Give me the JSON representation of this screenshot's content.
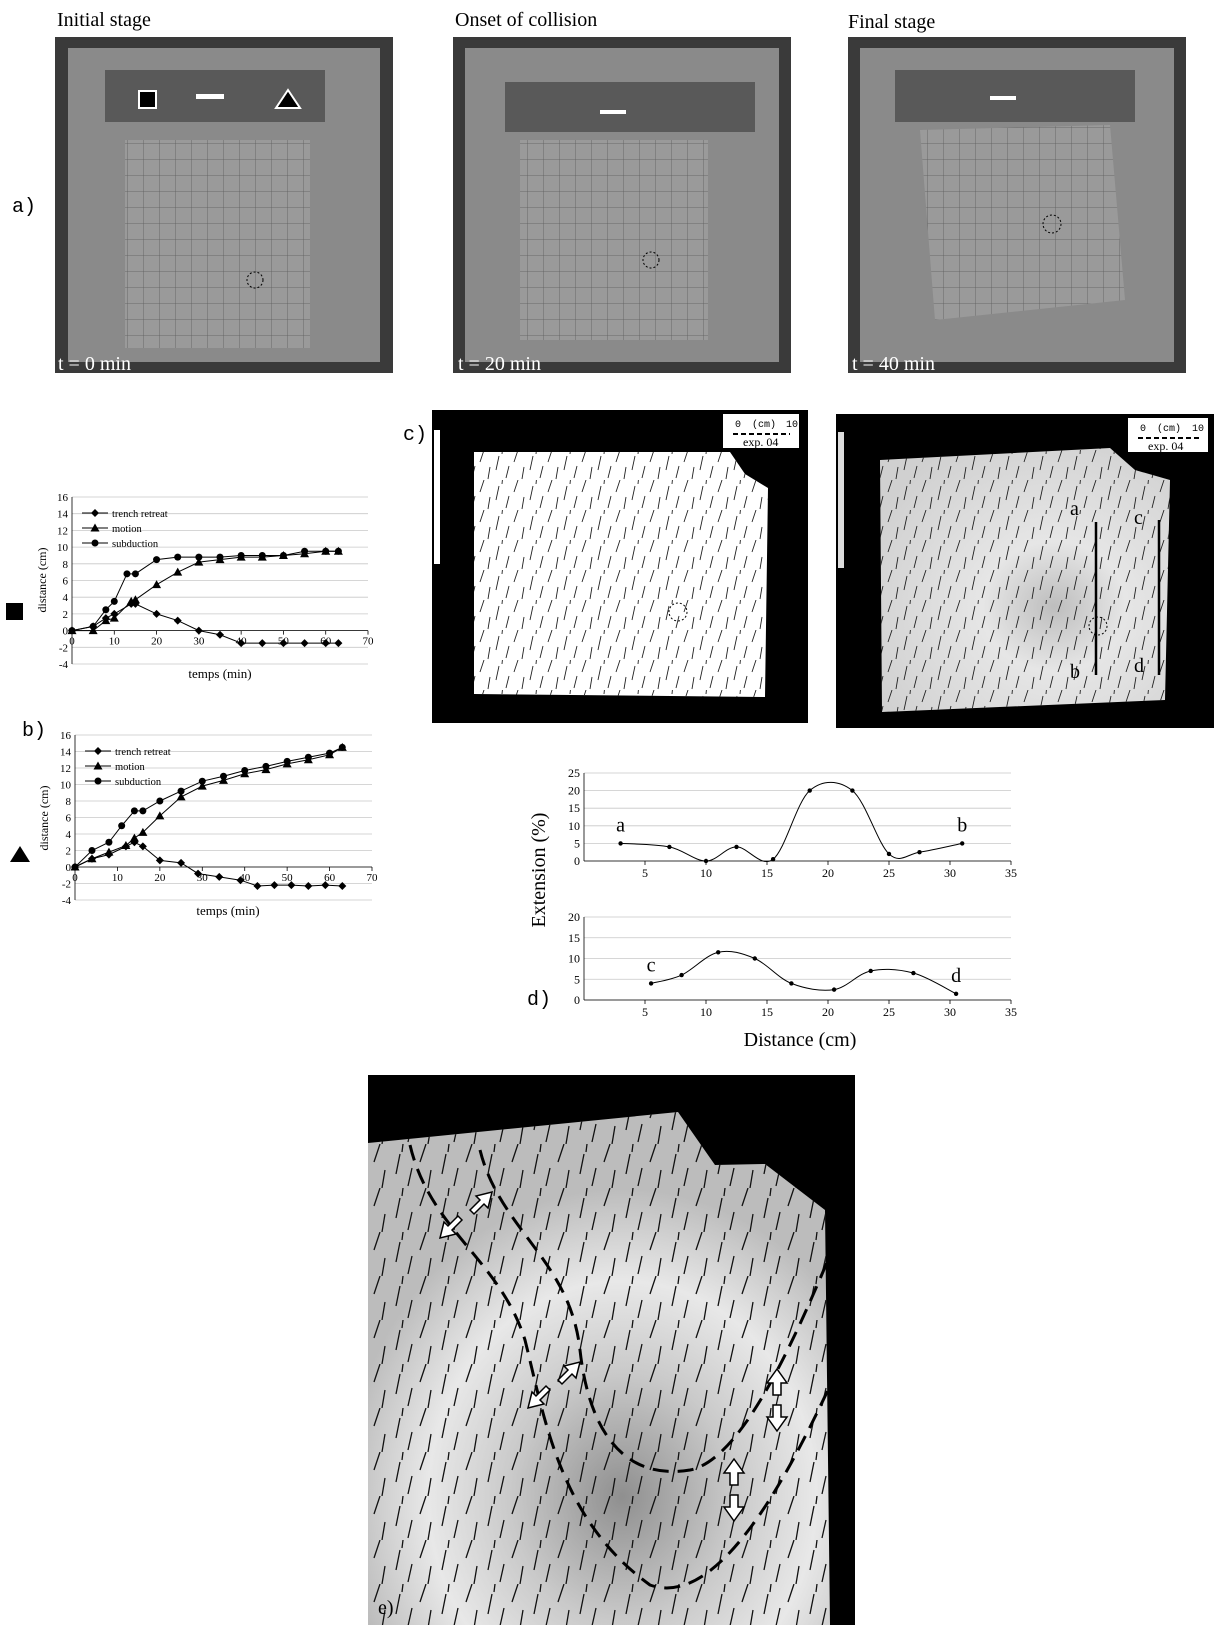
{
  "panels": {
    "a": {
      "label": "a)",
      "stages": [
        {
          "title": "Initial stage",
          "time": "t = 0 min"
        },
        {
          "title": "Onset of collision",
          "time": "t = 20 min"
        },
        {
          "title": "Final stage",
          "time": "t = 40 min"
        }
      ]
    },
    "b": {
      "label": "b)"
    },
    "c": {
      "label": "c)",
      "maps": [
        {
          "scale_start": "0",
          "scale_unit": "(cm)",
          "scale_end": "10",
          "exp": "exp. 04"
        },
        {
          "scale_start": "0",
          "scale_unit": "(cm)",
          "scale_end": "10",
          "exp": "exp. 04"
        }
      ],
      "profiles": [
        "a",
        "b",
        "c",
        "d"
      ]
    },
    "d": {
      "label": "d)"
    },
    "e": {
      "label": "e)"
    }
  },
  "chart_data": [
    {
      "type": "line",
      "x_label": "temps (min)",
      "y_label": "distance (cm)",
      "xlim": [
        0,
        70
      ],
      "xticks": [
        0,
        10,
        20,
        30,
        40,
        50,
        60,
        70
      ],
      "ylim": [
        -4,
        16
      ],
      "yticks": [
        -4,
        -2,
        0,
        2,
        4,
        6,
        8,
        10,
        12,
        14,
        16
      ],
      "grid": true,
      "legend": "upper left",
      "series": [
        {
          "name": "trench retreat",
          "marker": "diamond",
          "color": "#000",
          "x": [
            0,
            5,
            8,
            10,
            14,
            15,
            20,
            25,
            30,
            35,
            40,
            45,
            50,
            55,
            60,
            63
          ],
          "values": [
            0,
            0.5,
            1.5,
            2,
            3.2,
            3.2,
            2,
            1.2,
            0,
            -0.5,
            -1.5,
            -1.5,
            -1.5,
            -1.5,
            -1.5,
            -1.5
          ]
        },
        {
          "name": "motion",
          "marker": "triangle",
          "color": "#000",
          "x": [
            0,
            5,
            8,
            10,
            14,
            15,
            20,
            25,
            30,
            35,
            40,
            45,
            50,
            55,
            60,
            63
          ],
          "values": [
            0,
            0,
            1.2,
            1.5,
            3.5,
            3.7,
            5.5,
            7,
            8.2,
            8.5,
            8.8,
            8.8,
            9,
            9.2,
            9.5,
            9.5
          ]
        },
        {
          "name": "subduction",
          "marker": "circle",
          "color": "#000",
          "x": [
            0,
            5,
            8,
            10,
            13,
            15,
            20,
            25,
            30,
            35,
            40,
            45,
            50,
            55,
            60,
            63
          ],
          "values": [
            0,
            0.5,
            2.5,
            3.5,
            6.8,
            6.8,
            8.5,
            8.8,
            8.8,
            8.8,
            9,
            9,
            9,
            9.5,
            9.5,
            9.5
          ]
        }
      ]
    },
    {
      "type": "line",
      "x_label": "temps (min)",
      "y_label": "distance (cm)",
      "xlim": [
        0,
        70
      ],
      "xticks": [
        0,
        10,
        20,
        30,
        40,
        50,
        60,
        70
      ],
      "ylim": [
        -4,
        16
      ],
      "yticks": [
        -4,
        -2,
        0,
        2,
        4,
        6,
        8,
        10,
        12,
        14,
        16
      ],
      "grid": true,
      "legend": "upper left",
      "series": [
        {
          "name": "trench retreat",
          "marker": "diamond",
          "color": "#000",
          "x": [
            0,
            4,
            8,
            12,
            14,
            16,
            20,
            25,
            29,
            34,
            39,
            43,
            47,
            51,
            55,
            59,
            63
          ],
          "values": [
            0,
            1,
            1.5,
            2.5,
            3,
            2.5,
            0.8,
            0.5,
            -0.8,
            -1.2,
            -1.6,
            -2.3,
            -2.2,
            -2.2,
            -2.3,
            -2.2,
            -2.3
          ]
        },
        {
          "name": "motion",
          "marker": "triangle",
          "color": "#000",
          "x": [
            0,
            4,
            8,
            12,
            14,
            16,
            20,
            25,
            30,
            35,
            40,
            45,
            50,
            55,
            60,
            63
          ],
          "values": [
            0,
            1,
            1.8,
            2.6,
            3.5,
            4.2,
            6.2,
            8.5,
            9.8,
            10.5,
            11.3,
            11.8,
            12.5,
            13,
            13.6,
            14.5
          ]
        },
        {
          "name": "subduction",
          "marker": "circle",
          "color": "#000",
          "x": [
            0,
            4,
            8,
            11,
            14,
            16,
            20,
            25,
            30,
            35,
            40,
            45,
            50,
            55,
            60,
            63
          ],
          "values": [
            0,
            2,
            3,
            5,
            6.8,
            6.8,
            8,
            9.2,
            10.4,
            11,
            11.7,
            12.2,
            12.8,
            13.3,
            13.8,
            14.5
          ]
        }
      ]
    },
    {
      "type": "smooth",
      "y_label": "Extension (%)",
      "xlim": [
        0,
        35
      ],
      "xticks": [
        5,
        10,
        15,
        20,
        25,
        30,
        35
      ],
      "ylim": [
        0,
        25
      ],
      "yticks": [
        0,
        5,
        10,
        15,
        20,
        25
      ],
      "grid": true,
      "color": "#000",
      "x": [
        3,
        7,
        10,
        12.5,
        15.5,
        18.5,
        22,
        25,
        27.5,
        31
      ],
      "values": [
        5,
        4,
        0,
        4,
        0.5,
        20,
        20,
        2,
        2.5,
        5
      ],
      "annotations": [
        "a",
        "b"
      ]
    },
    {
      "type": "smooth",
      "x_label": "Distance (cm)",
      "xlim": [
        0,
        35
      ],
      "xticks": [
        5,
        10,
        15,
        20,
        25,
        30,
        35
      ],
      "ylim": [
        0,
        20
      ],
      "yticks": [
        0,
        5,
        10,
        15,
        20
      ],
      "grid": true,
      "color": "#000",
      "x": [
        5.5,
        8,
        11,
        14,
        17,
        20.5,
        23.5,
        27,
        30.5
      ],
      "values": [
        4,
        6,
        11.5,
        10,
        4,
        2.5,
        7,
        6.5,
        1.5
      ],
      "annotations": [
        "c",
        "d"
      ]
    }
  ]
}
